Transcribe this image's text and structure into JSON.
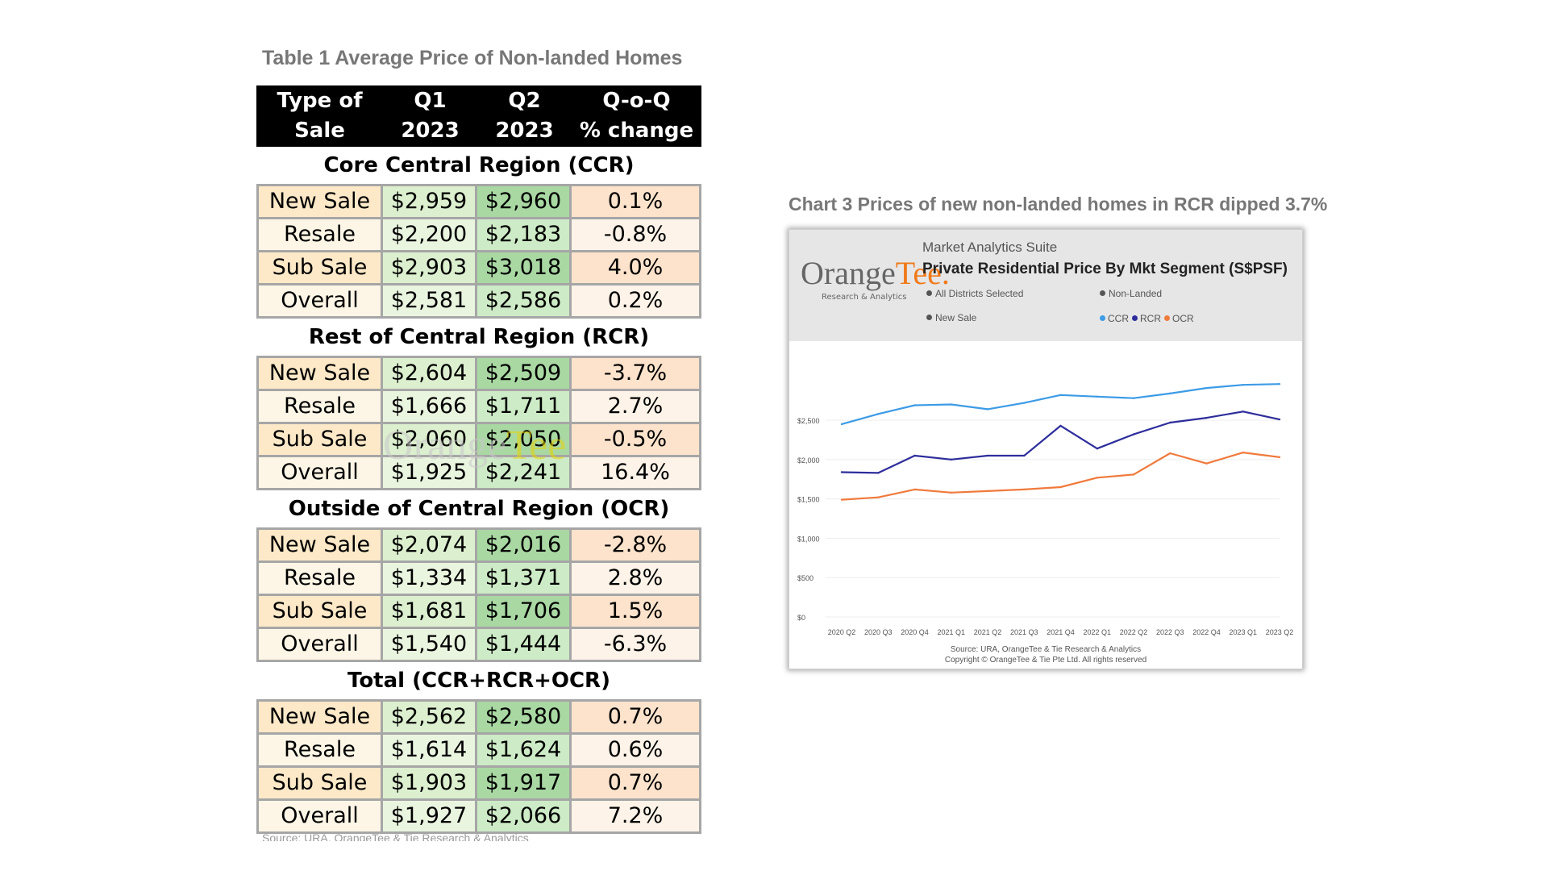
{
  "table": {
    "title": "Table 1 Average Price of Non-landed Homes",
    "headers": [
      [
        "Type of",
        "Sale"
      ],
      [
        "Q1",
        "2023"
      ],
      [
        "Q2",
        "2023"
      ],
      [
        "Q-o-Q",
        "% change"
      ]
    ],
    "sections": [
      {
        "title": "Core Central Region (CCR)",
        "rows": [
          {
            "type": "New Sale",
            "q1": "$2,959",
            "q2": "$2,960",
            "chg": "0.1%"
          },
          {
            "type": "Resale",
            "q1": "$2,200",
            "q2": "$2,183",
            "chg": "-0.8%"
          },
          {
            "type": "Sub Sale",
            "q1": "$2,903",
            "q2": "$3,018",
            "chg": "4.0%"
          },
          {
            "type": "Overall",
            "q1": "$2,581",
            "q2": "$2,586",
            "chg": "0.2%"
          }
        ]
      },
      {
        "title": "Rest of Central Region (RCR)",
        "rows": [
          {
            "type": "New Sale",
            "q1": "$2,604",
            "q2": "$2,509",
            "chg": "-3.7%"
          },
          {
            "type": "Resale",
            "q1": "$1,666",
            "q2": "$1,711",
            "chg": "2.7%"
          },
          {
            "type": "Sub Sale",
            "q1": "$2,060",
            "q2": "$2,050",
            "chg": "-0.5%"
          },
          {
            "type": "Overall",
            "q1": "$1,925",
            "q2": "$2,241",
            "chg": "16.4%"
          }
        ]
      },
      {
        "title": "Outside of Central Region (OCR)",
        "rows": [
          {
            "type": "New Sale",
            "q1": "$2,074",
            "q2": "$2,016",
            "chg": "-2.8%"
          },
          {
            "type": "Resale",
            "q1": "$1,334",
            "q2": "$1,371",
            "chg": "2.8%"
          },
          {
            "type": "Sub Sale",
            "q1": "$1,681",
            "q2": "$1,706",
            "chg": "1.5%"
          },
          {
            "type": "Overall",
            "q1": "$1,540",
            "q2": "$1,444",
            "chg": "-6.3%"
          }
        ]
      },
      {
        "title": "Total (CCR+RCR+OCR)",
        "rows": [
          {
            "type": "New Sale",
            "q1": "$2,562",
            "q2": "$2,580",
            "chg": "0.7%"
          },
          {
            "type": "Resale",
            "q1": "$1,614",
            "q2": "$1,624",
            "chg": "0.6%"
          },
          {
            "type": "Sub Sale",
            "q1": "$1,903",
            "q2": "$1,917",
            "chg": "0.7%"
          },
          {
            "type": "Overall",
            "q1": "$1,927",
            "q2": "$2,066",
            "chg": "7.2%"
          }
        ]
      }
    ],
    "source": "Source: URA, OrangeTee & Tie Research & Analytics",
    "watermark": {
      "part_a": "Orange",
      "part_b": "Tee"
    }
  },
  "chart_title": "Chart 3 Prices of new non-landed homes in RCR dipped 3.7%",
  "chart_header": {
    "logo_a": "Orange",
    "logo_b": "Tee.",
    "logo_sub": "Research & Analytics",
    "suite": "Market Analytics Suite",
    "heading": "Private Residential Price By Mkt Segment (S$PSF)",
    "filters": {
      "districts": "All Districts Selected",
      "landed": "Non-Landed",
      "sale_type": "New Sale"
    }
  },
  "chart_source": {
    "line1": "Source: URA, OrangeTee & Tie Research & Analytics",
    "line2": "Copyright © OrangeTee & Tie Pte Ltd. All rights reserved"
  },
  "chart_data": {
    "type": "line",
    "categories": [
      "2020 Q2",
      "2020 Q3",
      "2020 Q4",
      "2021 Q1",
      "2021 Q2",
      "2021 Q3",
      "2021 Q4",
      "2022 Q1",
      "2022 Q2",
      "2022 Q3",
      "2022 Q4",
      "2023 Q1",
      "2023 Q2"
    ],
    "series": [
      {
        "name": "CCR",
        "color": "#3c9be6",
        "values": [
          2450,
          2580,
          2690,
          2700,
          2640,
          2720,
          2820,
          2800,
          2780,
          2840,
          2910,
          2950,
          2960
        ]
      },
      {
        "name": "RCR",
        "color": "#2d2d9c",
        "values": [
          1840,
          1830,
          2050,
          2000,
          2050,
          2050,
          2430,
          2140,
          2320,
          2470,
          2530,
          2610,
          2510
        ]
      },
      {
        "name": "OCR",
        "color": "#f07a3c",
        "values": [
          1490,
          1520,
          1620,
          1580,
          1600,
          1620,
          1650,
          1770,
          1810,
          2080,
          1950,
          2090,
          2030
        ]
      }
    ],
    "y_ticks": [
      "$0",
      "$500",
      "$1,000",
      "$1,500",
      "$2,000",
      "$2,500"
    ],
    "ylim": [
      0,
      3300
    ],
    "grid": true,
    "legend": "top"
  }
}
